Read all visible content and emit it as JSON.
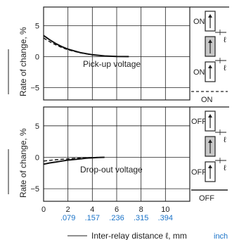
{
  "chart_data": [
    {
      "type": "line",
      "title": "",
      "xlabel": "Inter-relay distance ℓ, mm",
      "xlabel_unit2": "inch",
      "ylabel": "Rate of change, %",
      "xlim": [
        0,
        12
      ],
      "ylim": [
        -7,
        8
      ],
      "x_ticks": [
        0,
        2,
        4,
        6,
        8,
        10
      ],
      "y_ticks": [
        5,
        0,
        -5
      ],
      "grid": true,
      "annotation": "Pick-up voltage",
      "series": [
        {
          "style": "solid",
          "x": [
            0,
            0.5,
            1,
            1.5,
            2,
            3,
            4,
            5,
            6,
            7
          ],
          "y": [
            3.4,
            2.7,
            2.1,
            1.6,
            1.2,
            0.65,
            0.3,
            0.1,
            0.02,
            0
          ]
        },
        {
          "style": "dashed",
          "x": [
            0,
            0.5,
            1,
            1.5,
            2,
            3,
            4,
            5,
            6,
            7
          ],
          "y": [
            3.0,
            2.4,
            1.9,
            1.45,
            1.1,
            0.6,
            0.28,
            0.1,
            0.02,
            0
          ]
        }
      ]
    },
    {
      "type": "line",
      "title": "",
      "xlabel": "Inter-relay distance ℓ, mm",
      "xlabel_unit2": "inch",
      "ylabel": "Rate of change, %",
      "xlim": [
        0,
        12
      ],
      "ylim": [
        -7,
        8
      ],
      "x_ticks": [
        0,
        2,
        4,
        6,
        8,
        10
      ],
      "y_ticks": [
        5,
        0,
        -5
      ],
      "grid": true,
      "annotation": "Drop-out voltage",
      "series": [
        {
          "style": "solid",
          "x": [
            0,
            0.5,
            1,
            1.5,
            2,
            2.5,
            3,
            3.5,
            4,
            4.5,
            5
          ],
          "y": [
            -1.1,
            -0.9,
            -0.75,
            -0.6,
            -0.45,
            -0.35,
            -0.25,
            -0.15,
            -0.08,
            -0.03,
            0
          ]
        },
        {
          "style": "dashed",
          "x": [
            0,
            0.5,
            1,
            1.5,
            2,
            2.5,
            3,
            3.5,
            4,
            4.5,
            5
          ],
          "y": [
            -0.6,
            -0.5,
            -0.4,
            -0.32,
            -0.25,
            -0.18,
            -0.12,
            -0.07,
            -0.03,
            -0.01,
            0
          ]
        }
      ]
    }
  ],
  "x_tick_labels": [
    "0",
    "2",
    "4",
    "6",
    "8",
    "10"
  ],
  "x_inch_labels": [
    ".079",
    ".157",
    ".236",
    ".315",
    ".394"
  ],
  "y_tick_labels": [
    "5",
    "0",
    "−5"
  ],
  "legend": {
    "top": {
      "label_a": "ON",
      "label_b": "ON",
      "label_c": "ON"
    },
    "bottom": {
      "label_a": "OFF",
      "label_b": "OFF",
      "label_c": "OFF"
    }
  },
  "xlabel": {
    "text": "Inter-relay distance ℓ, mm",
    "inch": "inch"
  }
}
